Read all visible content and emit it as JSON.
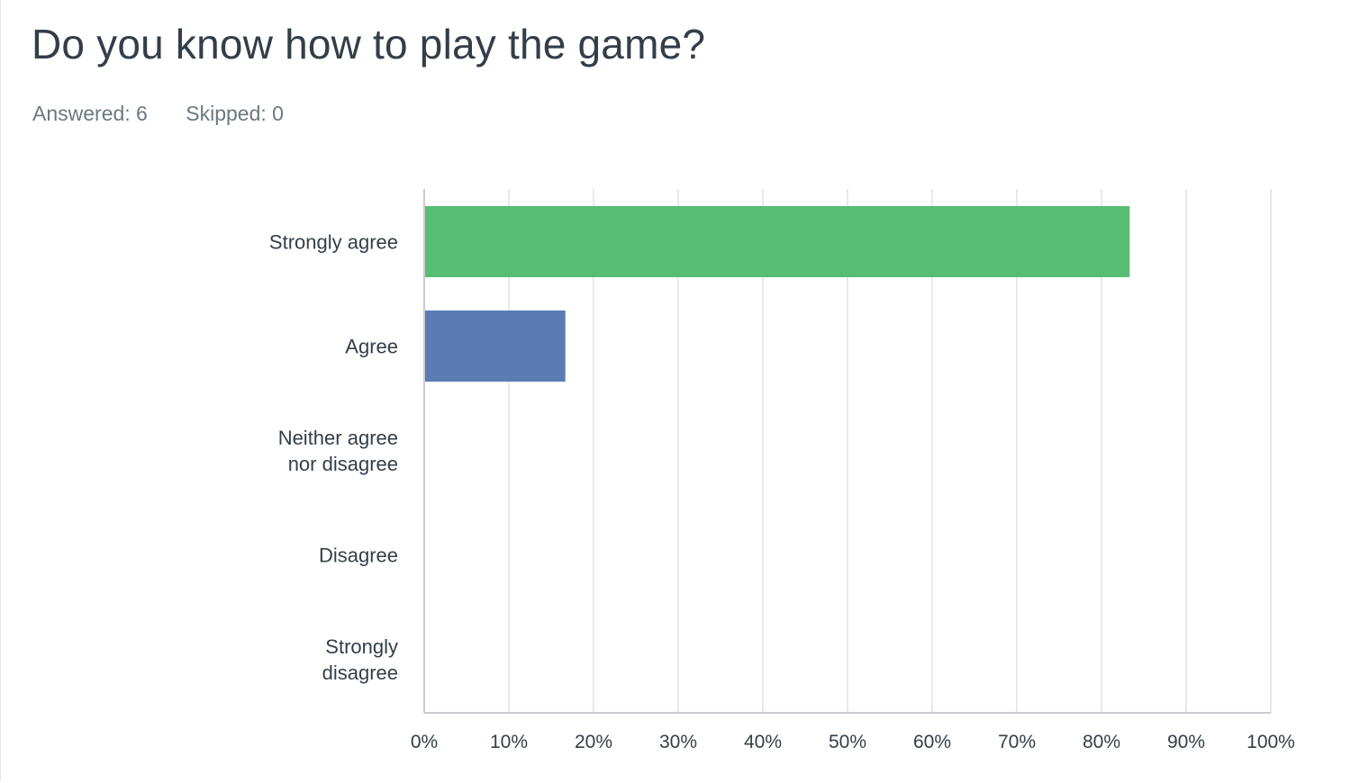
{
  "question": {
    "title": "Do you know how to play the game?",
    "answered": "Answered: 6",
    "skipped": "Skipped: 0"
  },
  "colors": {
    "strongly_agree": "#57bd74",
    "agree": "#5b7bb4",
    "grid": "#e8e9ea",
    "axis": "#c9cdd0"
  },
  "chart_data": {
    "type": "bar",
    "orientation": "horizontal",
    "categories": [
      [
        "Strongly agree"
      ],
      [
        "Agree"
      ],
      [
        "Neither agree",
        "nor disagree"
      ],
      [
        "Disagree"
      ],
      [
        "Strongly",
        "disagree"
      ]
    ],
    "values": [
      83.33,
      16.67,
      0,
      0,
      0
    ],
    "bar_colors": [
      "#57bd74",
      "#5b7bb4",
      "#e3ae4f",
      "#e06d5e",
      "#a96ec4"
    ],
    "xlim": [
      0,
      100
    ],
    "xticks": [
      "0%",
      "10%",
      "20%",
      "30%",
      "40%",
      "50%",
      "60%",
      "70%",
      "80%",
      "90%",
      "100%"
    ],
    "grid": true
  }
}
